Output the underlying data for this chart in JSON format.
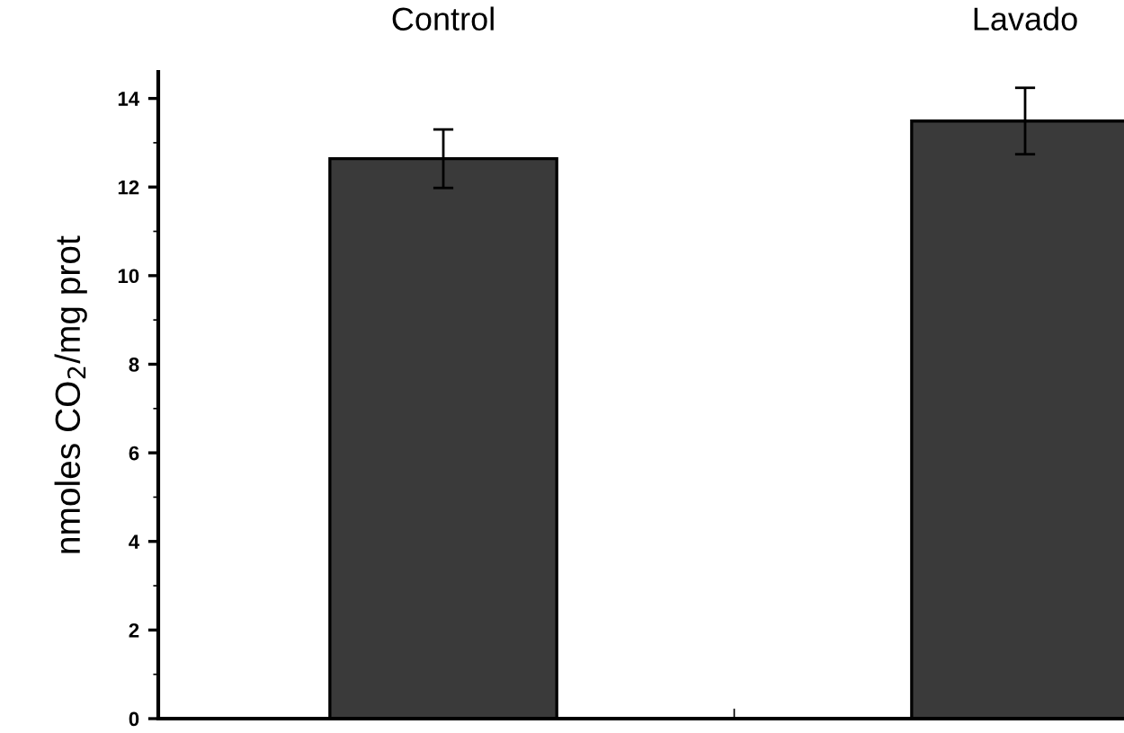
{
  "chart_data": {
    "type": "bar",
    "categories": [
      "Control",
      "Lavado"
    ],
    "values": [
      12.64,
      13.49
    ],
    "errors": [
      0.66,
      0.75
    ],
    "color": "#3a3a3a",
    "ylabel": "nmoles CO$_{2}$/mg prot",
    "ylim": [
      0,
      14.6
    ],
    "yticks": [
      0,
      2,
      4,
      6,
      8,
      10,
      12,
      14
    ],
    "grid": false,
    "legend": false
  }
}
